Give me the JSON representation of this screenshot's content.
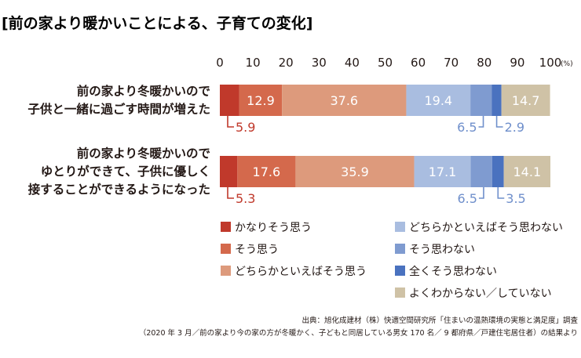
{
  "chart_data": {
    "type": "bar",
    "orientation": "horizontal",
    "stacked": true,
    "title": "[前の家より暖かいことによる、子育ての変化]",
    "x_ticks": [
      "0",
      "10",
      "20",
      "30",
      "40",
      "50",
      "60",
      "70",
      "80",
      "90",
      "100"
    ],
    "x_unit": "(%)",
    "xlim": [
      0,
      100
    ],
    "categories": [
      [
        "前の家より冬暖かいので",
        "子供と一緒に過ごす時間が増えた"
      ],
      [
        "前の家より冬暖かいので",
        "ゆとりができて、子供に優しく",
        "接することができるようになった"
      ]
    ],
    "series": [
      {
        "name": "かなりそう思う",
        "color": "#c0392b",
        "values": [
          5.9,
          5.3
        ],
        "labels": [
          "5.9",
          "5.3"
        ],
        "label_style": "callout"
      },
      {
        "name": "そう思う",
        "color": "#d4694c",
        "values": [
          12.9,
          17.6
        ],
        "labels": [
          "12.9",
          "17.6"
        ],
        "label_style": "inside"
      },
      {
        "name": "どちらかといえばそう思う",
        "color": "#dd9a7c",
        "values": [
          37.6,
          35.9
        ],
        "labels": [
          "37.6",
          "35.9"
        ],
        "label_style": "inside"
      },
      {
        "name": "どちらかといえばそう思わない",
        "color": "#a9bde0",
        "values": [
          19.4,
          17.1
        ],
        "labels": [
          "19.4",
          "17.1"
        ],
        "label_style": "inside"
      },
      {
        "name": "そう思わない",
        "color": "#7f9bd0",
        "values": [
          6.5,
          6.5
        ],
        "labels": [
          "6.5",
          "6.5"
        ],
        "label_style": "callout"
      },
      {
        "name": "全くそう思わない",
        "color": "#4a72bf",
        "values": [
          2.9,
          3.5
        ],
        "labels": [
          "2.9",
          "3.5"
        ],
        "label_style": "callout"
      },
      {
        "name": "よくわからない／していない",
        "color": "#cfc2a6",
        "values": [
          14.7,
          14.1
        ],
        "labels": [
          "14.7",
          "14.1"
        ],
        "label_style": "inside"
      }
    ],
    "legend_position": "bottom",
    "grid": false
  },
  "source": {
    "line1": "出典：旭化成建材（株）快適空間研究所「住まいの温熱環境の実態と満足度」調査",
    "line2": "（2020 年 3 月／前の家より今の家の方が冬暖かく、子どもと同居している男女 170 名／ 9 都府県／戸建住宅居住者）の結果より"
  }
}
